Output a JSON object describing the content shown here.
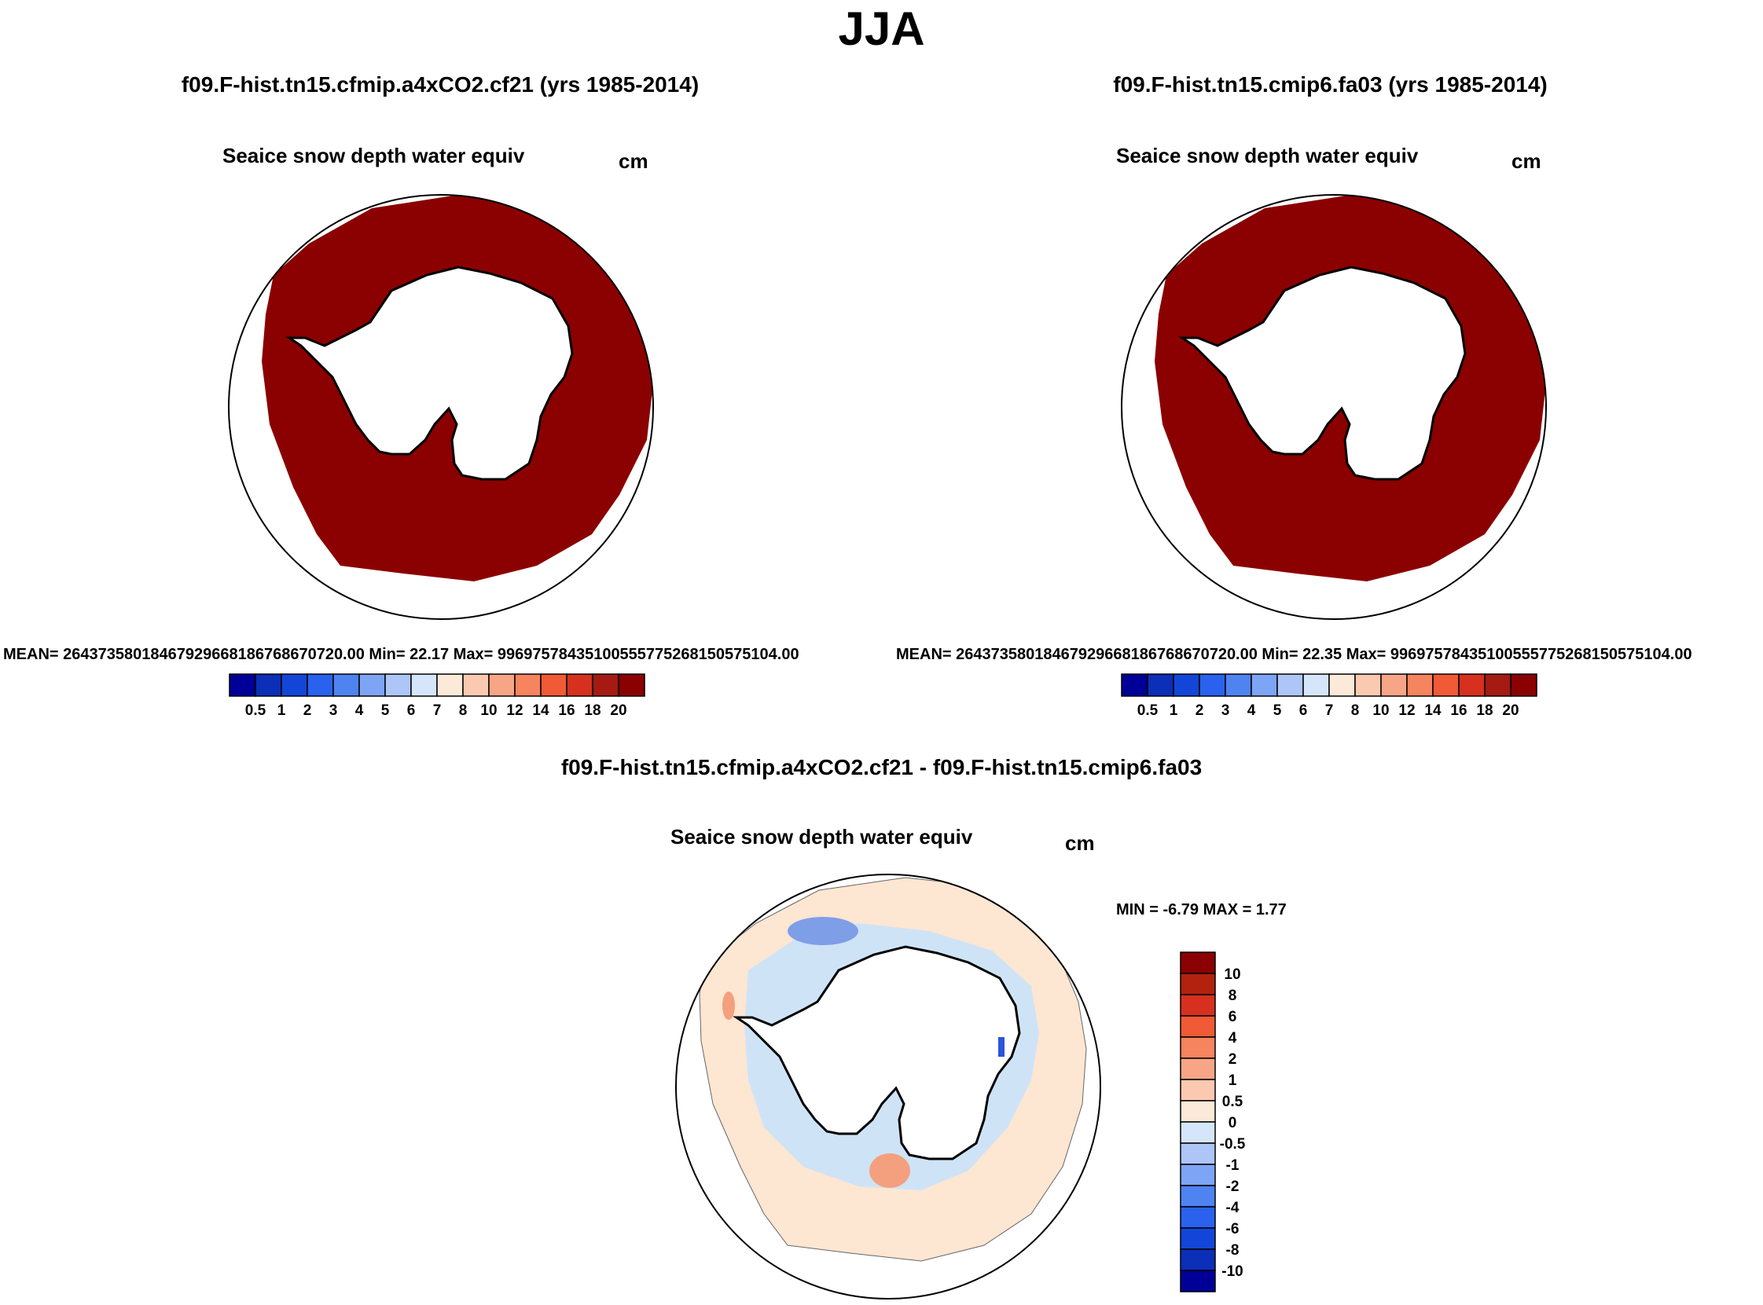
{
  "season": "JJA",
  "colors": {
    "ice": "#8b0000",
    "coast": "#000000",
    "diff_bg": "#fde6d2",
    "diff_blue": "#cfe3f7",
    "diff_blue_dark": "#7f9ee8",
    "diff_red": "#f4a07e",
    "deep_blue": "#2c55d9"
  },
  "panels": [
    {
      "title": "f09.F-hist.tn15.cfmip.a4xCO2.cf21 (yrs 1985-2014)",
      "variable": "Seaice snow depth water equiv",
      "units": "cm",
      "stats": "MEAN= 2643735801846792966818676867072​0.00  Min=  22.17  Max= 99697578435100555775268150575104.00"
    },
    {
      "title": "f09.F-hist.tn15.cmip6.fa03 (yrs 1985-2014)",
      "variable": "Seaice snow depth water equiv",
      "units": "cm",
      "stats": "MEAN= 26437358018467929668186768670720.00  Min=  22.35  Max= 99697578435100555775268150575104.00"
    }
  ],
  "diff_panel": {
    "title": "f09.F-hist.tn15.cfmip.a4xCO2.cf21 - f09.F-hist.tn15.cmip6.fa03",
    "variable": "Seaice snow depth water equiv",
    "units": "cm",
    "stats": "MIN =  -6.79 MAX =   1.77"
  },
  "chart_data": [
    {
      "type": "heatmap",
      "title": "f09.F-hist.tn15.cfmip.a4xCO2.cf21 (yrs 1985-2014)",
      "variable": "Seaice snow depth water equiv",
      "units": "cm",
      "projection": "south polar stereographic",
      "mean": "26437358018467929668186768670720.00",
      "min": 22.17,
      "max": "99697578435100555775268150575104.00",
      "colorbar": {
        "orientation": "horizontal",
        "levels": [
          "0.5",
          "1",
          "2",
          "3",
          "4",
          "5",
          "6",
          "7",
          "8",
          "10",
          "12",
          "14",
          "16",
          "18",
          "20"
        ],
        "colors": [
          "#000099",
          "#0c2fb8",
          "#1346d8",
          "#2a62ee",
          "#4f83f2",
          "#7ea4f5",
          "#adc6f7",
          "#d6e6fa",
          "#fde9da",
          "#fbc9b0",
          "#f8a587",
          "#f5845f",
          "#f05a37",
          "#d7301f",
          "#a51a12",
          "#8b0000"
        ]
      }
    },
    {
      "type": "heatmap",
      "title": "f09.F-hist.tn15.cmip6.fa03 (yrs 1985-2014)",
      "variable": "Seaice snow depth water equiv",
      "units": "cm",
      "projection": "south polar stereographic",
      "mean": "26437358018467929668186768670720.00",
      "min": 22.35,
      "max": "99697578435100555775268150575104.00",
      "colorbar": {
        "orientation": "horizontal",
        "levels": [
          "0.5",
          "1",
          "2",
          "3",
          "4",
          "5",
          "6",
          "7",
          "8",
          "10",
          "12",
          "14",
          "16",
          "18",
          "20"
        ],
        "colors": [
          "#000099",
          "#0c2fb8",
          "#1346d8",
          "#2a62ee",
          "#4f83f2",
          "#7ea4f5",
          "#adc6f7",
          "#d6e6fa",
          "#fde9da",
          "#fbc9b0",
          "#f8a587",
          "#f5845f",
          "#f05a37",
          "#d7301f",
          "#a51a12",
          "#8b0000"
        ]
      }
    },
    {
      "type": "heatmap",
      "title": "f09.F-hist.tn15.cfmip.a4xCO2.cf21 - f09.F-hist.tn15.cmip6.fa03",
      "variable": "Seaice snow depth water equiv",
      "units": "cm",
      "projection": "south polar stereographic",
      "min": -6.79,
      "max": 1.77,
      "colorbar": {
        "orientation": "vertical",
        "levels": [
          "10",
          "8",
          "6",
          "4",
          "2",
          "1",
          "0.5",
          "0",
          "-0.5",
          "-1",
          "-2",
          "-4",
          "-6",
          "-8",
          "-10"
        ],
        "colors": [
          "#8b0000",
          "#b2220f",
          "#d7301f",
          "#f05a37",
          "#f5845f",
          "#f8a587",
          "#fbc9b0",
          "#fde9da",
          "#d6e6fa",
          "#adc6f7",
          "#7ea4f5",
          "#4f83f2",
          "#2a62ee",
          "#1346d8",
          "#0c2fb8",
          "#000099"
        ]
      }
    }
  ]
}
